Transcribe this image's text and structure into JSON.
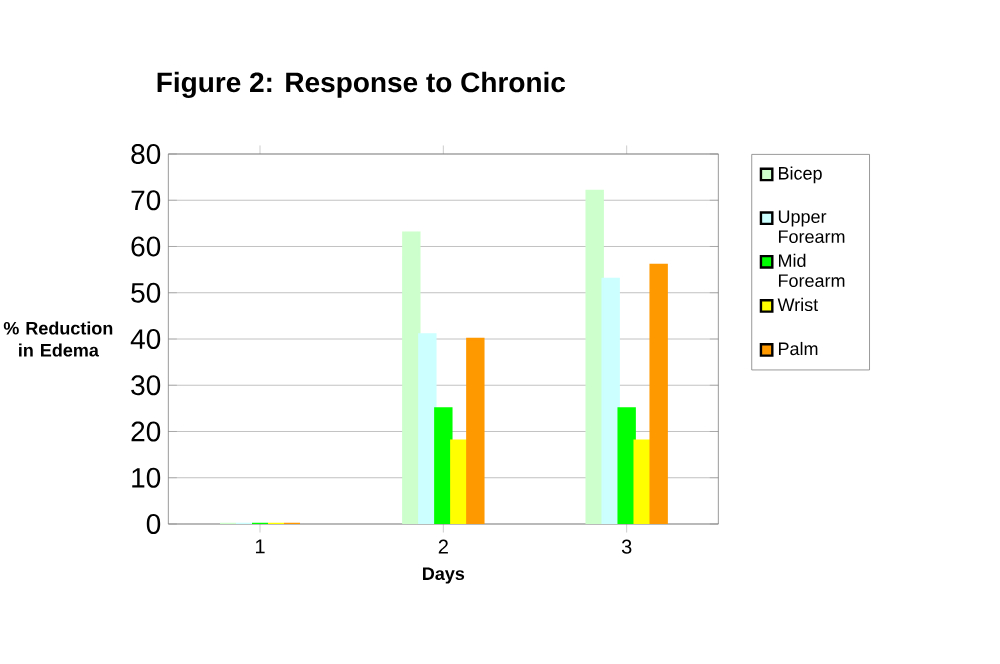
{
  "chart_data": {
    "type": "bar",
    "title": "Figure 2:          Response to Chronic",
    "xlabel": "Days",
    "ylabel": "% Reduction in Edema",
    "categories": [
      "1",
      "2",
      "3"
    ],
    "series": [
      {
        "name": "Bicep",
        "color": "#ccffcc",
        "values": [
          0,
          63,
          72
        ]
      },
      {
        "name": "Upper Forearm",
        "color": "#ccffff",
        "values": [
          0,
          41,
          53
        ]
      },
      {
        "name": "Mid Forearm",
        "color": "#00ff00",
        "values": [
          0,
          25,
          25
        ]
      },
      {
        "name": "Wrist",
        "color": "#ffff00",
        "values": [
          0,
          18,
          18
        ]
      },
      {
        "name": "Palm",
        "color": "#ff9900",
        "values": [
          0,
          40,
          56
        ]
      }
    ],
    "ylim": [
      0,
      80
    ],
    "yticks": [
      0,
      10,
      20,
      30,
      40,
      50,
      60,
      70,
      80
    ],
    "grid": "y",
    "legend": "right"
  }
}
